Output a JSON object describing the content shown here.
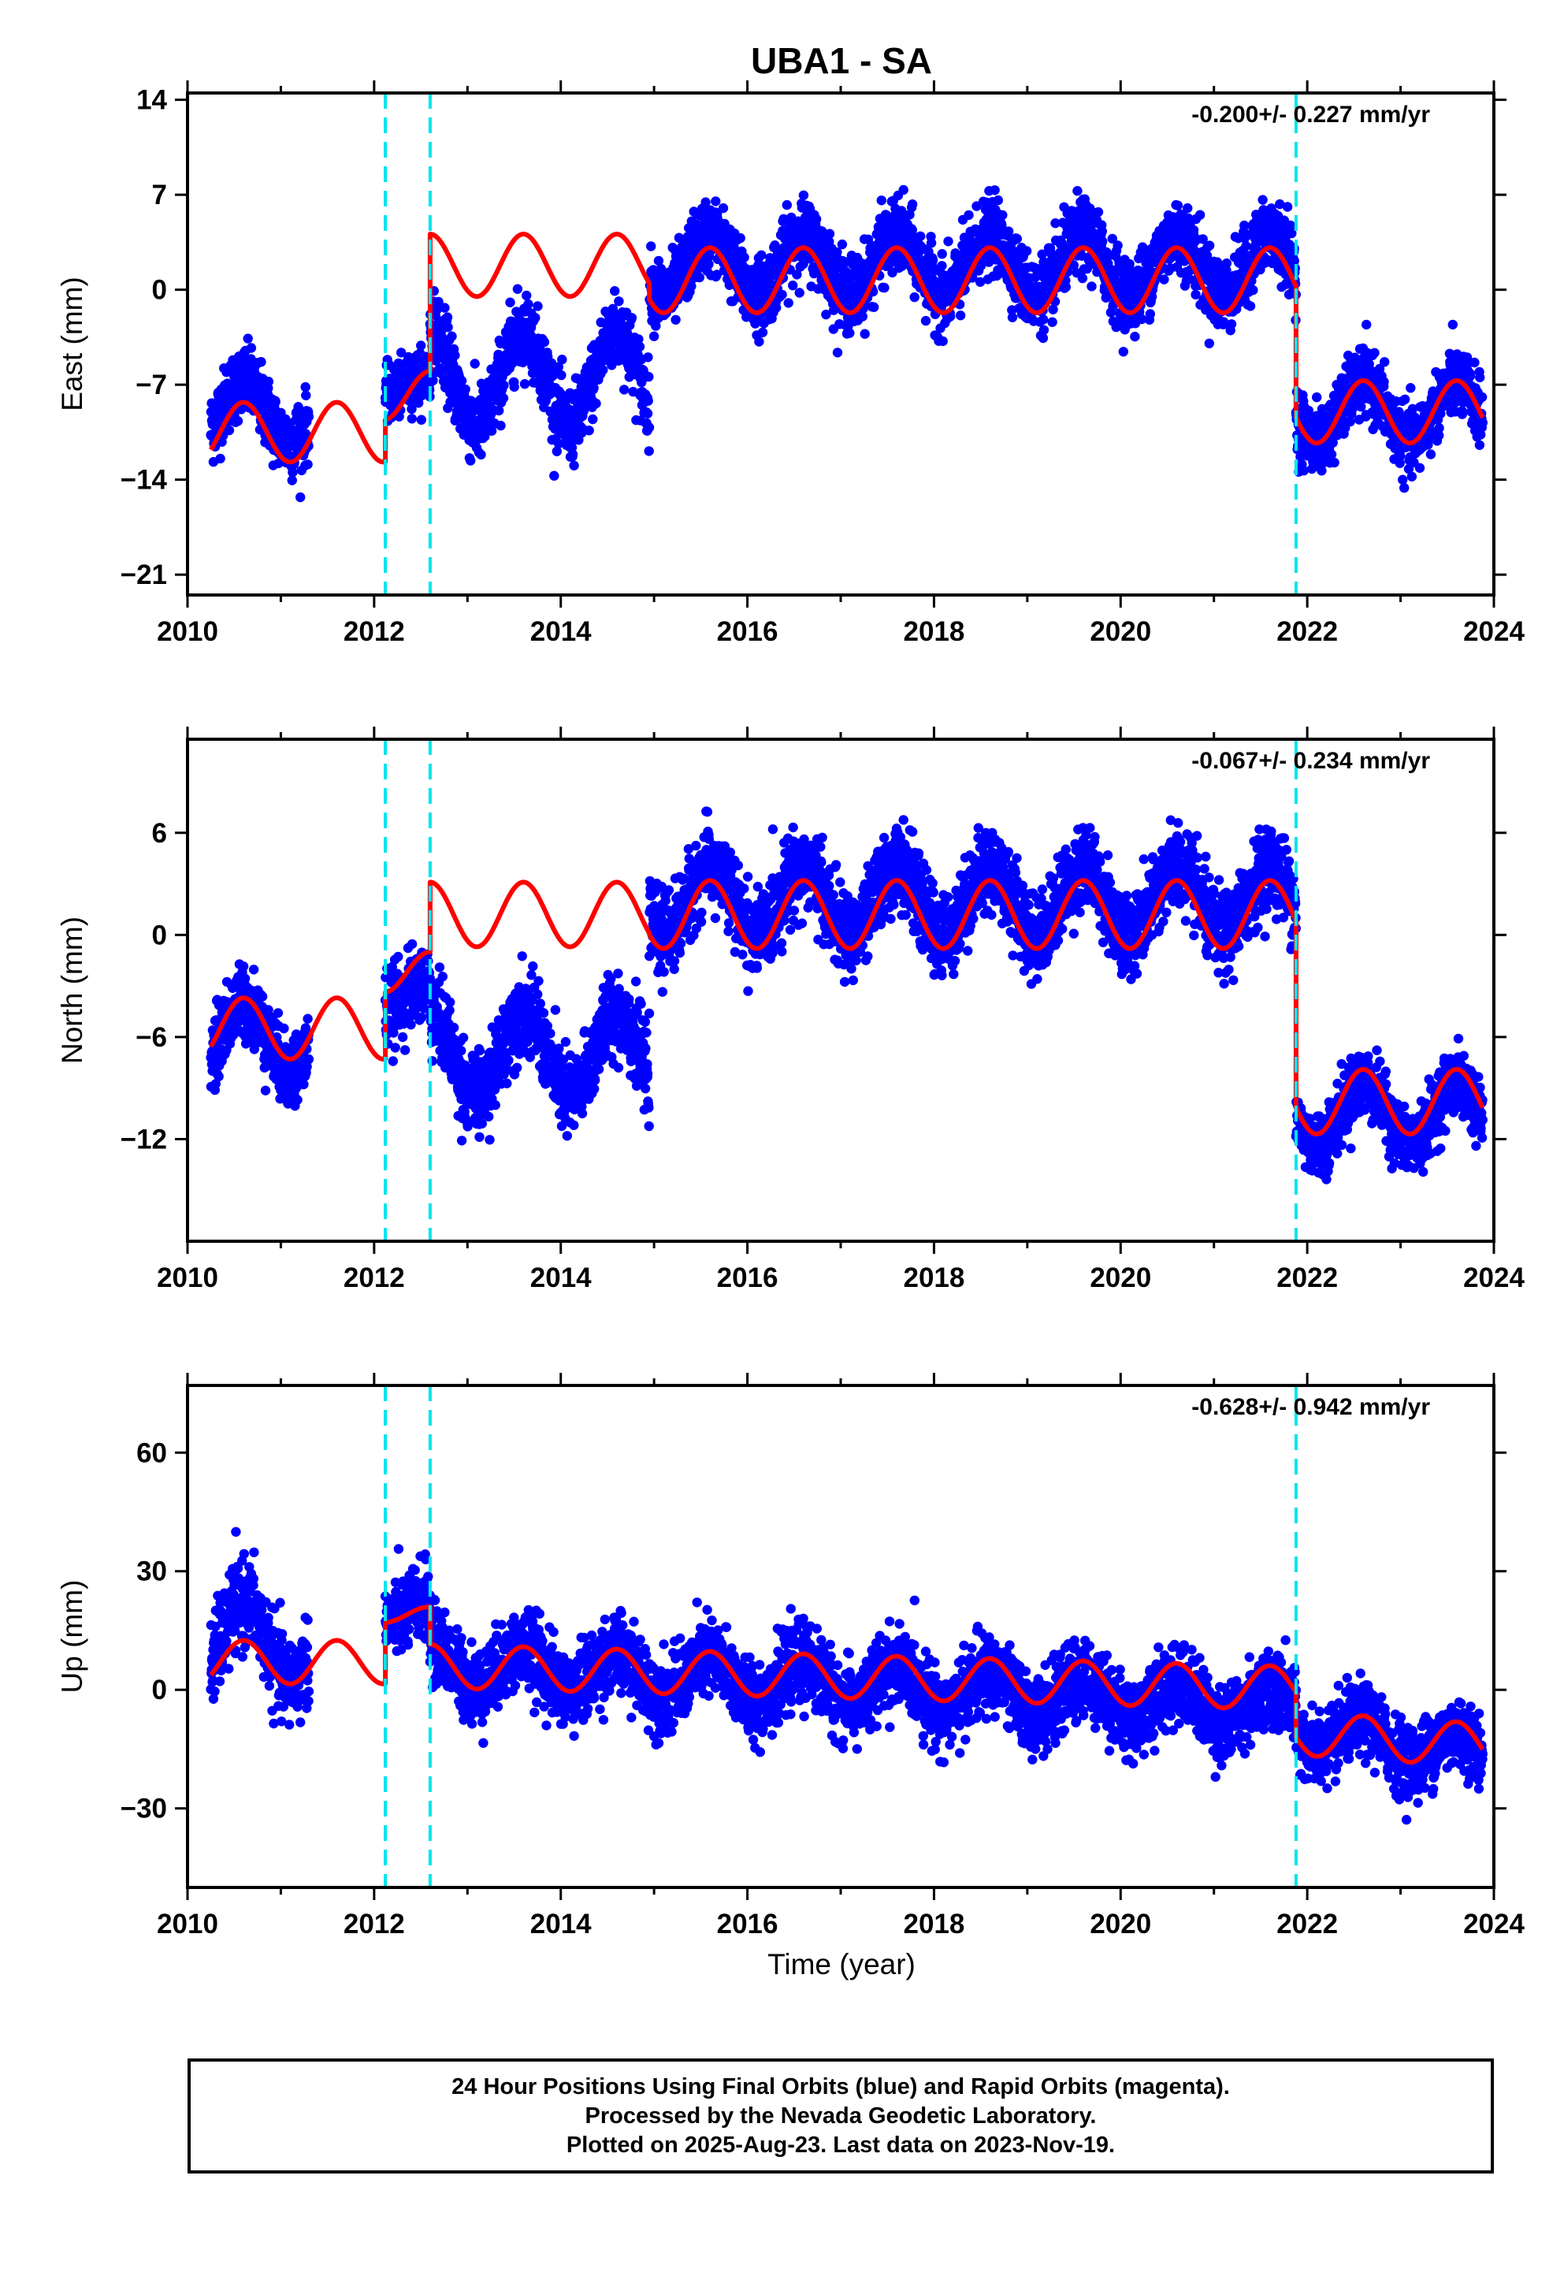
{
  "colors": {
    "final_orbits": "#0000ff",
    "model_fit": "#ff0000",
    "offsets": "#00e5ee",
    "axes": "#000000",
    "background": "#ffffff"
  },
  "chart_data": [
    {
      "type": "scatter",
      "title": "UBA1 - SA",
      "xlabel": "",
      "ylabel": "East (mm)",
      "rate": "-0.200+/- 0.227 mm/yr",
      "xlim": [
        2010,
        2024
      ],
      "ylim": [
        -22.5,
        14.5
      ],
      "xticks": [
        2010,
        2012,
        2014,
        2016,
        2018,
        2020,
        2022,
        2024
      ],
      "yticks": [
        -21,
        -14,
        -7,
        0,
        7,
        14
      ],
      "offsets": [
        2012.12,
        2012.6,
        2021.88
      ],
      "series": [
        {
          "role": "daily positions (blue dots)",
          "segments": [
            {
              "start": 2010.25,
              "end": 2011.3,
              "level": -9.0,
              "amp": 2.2,
              "noise": 2.2
            },
            {
              "start": 2012.12,
              "end": 2012.6,
              "level": -7.0,
              "amp": 0.8,
              "noise": 1.6
            },
            {
              "start": 2012.6,
              "end": 2014.95,
              "level": -6.5,
              "amp": 3.5,
              "noise": 2.3
            },
            {
              "start": 2014.95,
              "end": 2021.88,
              "level": 1.8,
              "amp": 2.2,
              "noise": 2.2
            },
            {
              "start": 2021.88,
              "end": 2023.88,
              "level": -9.0,
              "amp": 2.2,
              "noise": 2.0
            }
          ]
        },
        {
          "role": "model fit (red line)",
          "segments": [
            {
              "start": 2010.25,
              "end": 2012.12,
              "level": -10.5,
              "amp": 2.2
            },
            {
              "start": 2012.12,
              "end": 2012.6,
              "level": -7.8,
              "amp": 1.8
            },
            {
              "start": 2012.6,
              "end": 2014.95,
              "level": 1.8,
              "amp": 2.3
            },
            {
              "start": 2014.95,
              "end": 2021.88,
              "level": 0.7,
              "amp": 2.4
            },
            {
              "start": 2021.88,
              "end": 2023.88,
              "level": -9.0,
              "amp": 2.3
            }
          ]
        }
      ]
    },
    {
      "type": "scatter",
      "xlabel": "",
      "ylabel": "North (mm)",
      "rate": "-0.067+/- 0.234 mm/yr",
      "xlim": [
        2010,
        2024
      ],
      "ylim": [
        -18,
        11.5
      ],
      "xticks": [
        2010,
        2012,
        2014,
        2016,
        2018,
        2020,
        2022,
        2024
      ],
      "yticks": [
        -12,
        -6,
        0,
        6
      ],
      "offsets": [
        2012.12,
        2012.6,
        2021.88
      ],
      "series": [
        {
          "role": "daily positions (blue dots)",
          "segments": [
            {
              "start": 2010.25,
              "end": 2011.3,
              "level": -6.0,
              "amp": 2.0,
              "noise": 1.8
            },
            {
              "start": 2012.12,
              "end": 2012.6,
              "level": -3.5,
              "amp": 0.8,
              "noise": 1.8
            },
            {
              "start": 2012.6,
              "end": 2014.95,
              "level": -7.0,
              "amp": 2.5,
              "noise": 2.0
            },
            {
              "start": 2014.95,
              "end": 2021.88,
              "level": 2.0,
              "amp": 2.0,
              "noise": 2.0
            },
            {
              "start": 2021.88,
              "end": 2023.88,
              "level": -10.5,
              "amp": 1.8,
              "noise": 1.6
            }
          ]
        },
        {
          "role": "model fit (red line)",
          "segments": [
            {
              "start": 2010.25,
              "end": 2012.12,
              "level": -5.5,
              "amp": 1.8
            },
            {
              "start": 2012.12,
              "end": 2012.6,
              "level": -2.2,
              "amp": 1.2
            },
            {
              "start": 2012.6,
              "end": 2014.95,
              "level": 1.2,
              "amp": 1.9
            },
            {
              "start": 2014.95,
              "end": 2021.88,
              "level": 1.2,
              "amp": 2.0
            },
            {
              "start": 2021.88,
              "end": 2023.88,
              "level": -9.8,
              "amp": 1.9
            }
          ]
        }
      ]
    },
    {
      "type": "scatter",
      "xlabel": "Time (year)",
      "ylabel": "Up (mm)",
      "rate": "-0.628+/- 0.942 mm/yr",
      "xlim": [
        2010,
        2024
      ],
      "ylim": [
        -50,
        77
      ],
      "xticks": [
        2010,
        2012,
        2014,
        2016,
        2018,
        2020,
        2022,
        2024
      ],
      "yticks": [
        -30,
        0,
        30,
        60
      ],
      "offsets": [
        2012.12,
        2012.6,
        2021.88
      ],
      "series": [
        {
          "role": "daily positions (blue dots)",
          "segments": [
            {
              "start": 2010.25,
              "end": 2011.3,
              "level": 12.0,
              "amp": 10.0,
              "noise": 9.0
            },
            {
              "start": 2012.12,
              "end": 2012.6,
              "level": 20.0,
              "amp": 3.0,
              "noise": 8.0
            },
            {
              "start": 2012.6,
              "end": 2021.88,
              "level": 6.5,
              "trend": -1.2,
              "amp": 5.0,
              "noise": 8.0
            },
            {
              "start": 2021.88,
              "end": 2023.88,
              "level": -10.0,
              "trend": -3.0,
              "amp": 4.5,
              "noise": 7.5
            }
          ]
        },
        {
          "role": "model fit (red line)",
          "segments": [
            {
              "start": 2010.25,
              "end": 2012.12,
              "level": 7.0,
              "amp": 5.5
            },
            {
              "start": 2012.12,
              "end": 2012.6,
              "level": 19.0,
              "amp": 2.0
            },
            {
              "start": 2012.6,
              "end": 2021.88,
              "level": 6.0,
              "trend": -0.6,
              "amp": 5.5
            },
            {
              "start": 2021.88,
              "end": 2023.88,
              "level": -11.0,
              "trend": -1.5,
              "amp": 5.5
            }
          ]
        }
      ]
    }
  ],
  "footer": {
    "line1": "24 Hour Positions Using Final Orbits (blue) and Rapid Orbits (magenta).",
    "line2": "Processed by the Nevada Geodetic Laboratory.",
    "line3": "Plotted on 2025-Aug-23. Last data on 2023-Nov-19."
  }
}
